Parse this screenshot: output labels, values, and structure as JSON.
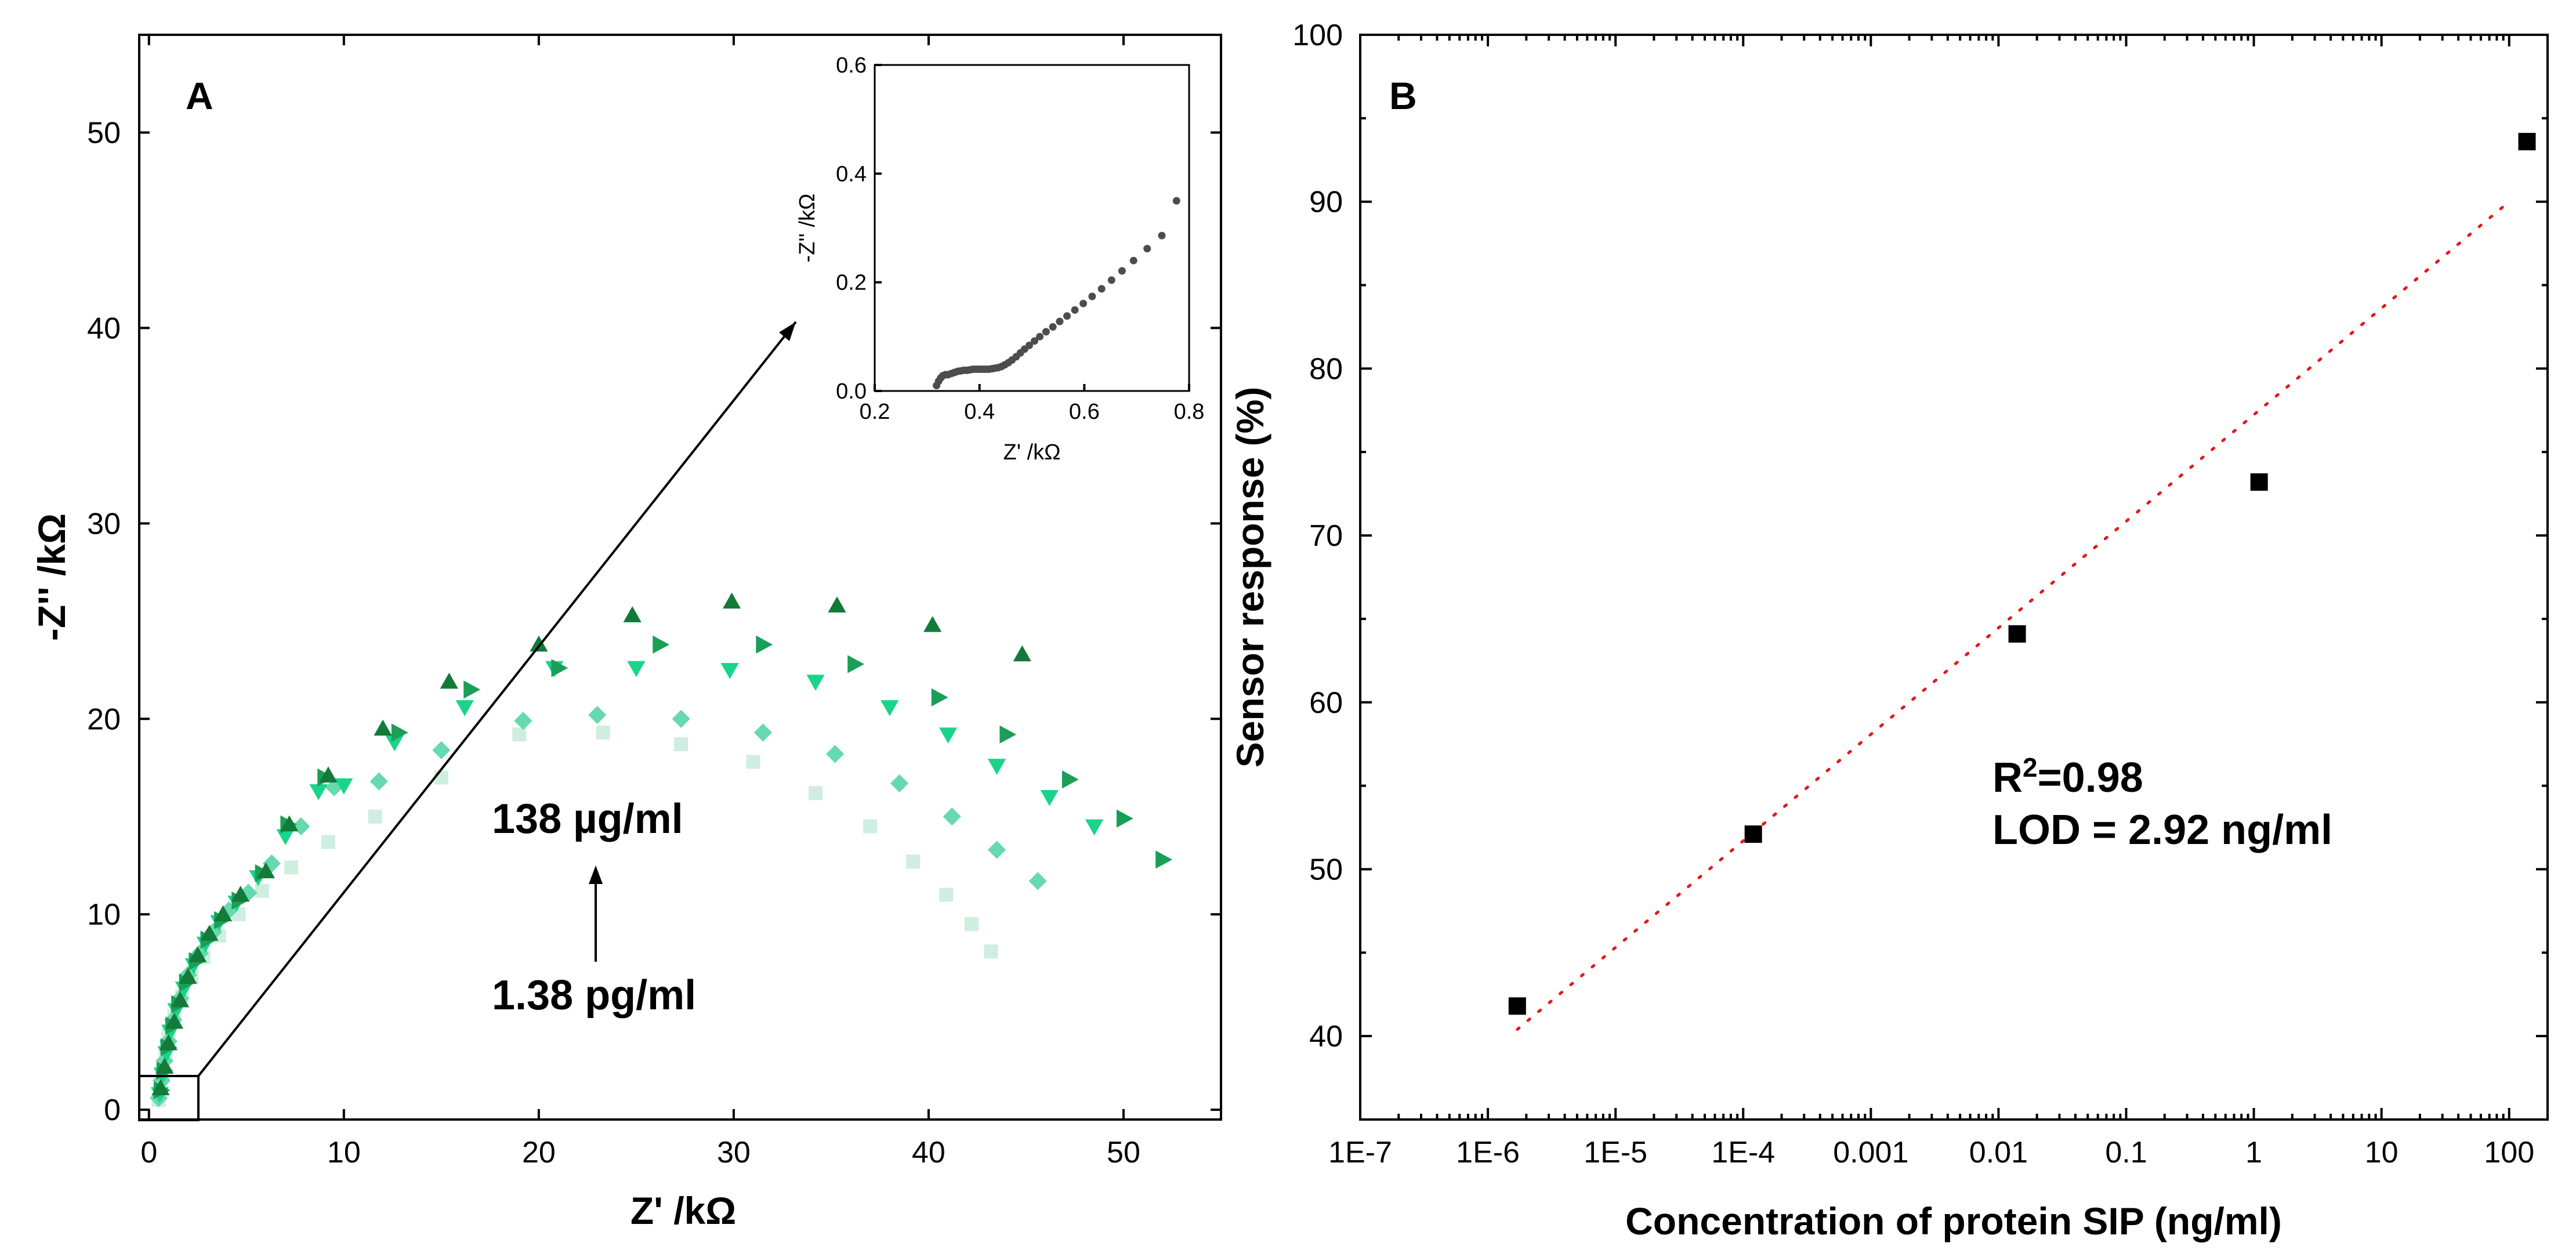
{
  "chart_data": [
    {
      "panel": "A",
      "type": "scatter",
      "xlabel": "Z' /kΩ",
      "ylabel": "-Z'' /kΩ",
      "xlim": [
        -0.5,
        55
      ],
      "ylim": [
        -0.5,
        55
      ],
      "xticks": [
        0,
        10,
        20,
        30,
        40,
        50
      ],
      "yticks": [
        0,
        10,
        20,
        30,
        40,
        50
      ],
      "colors": [
        "#cfeee0",
        "#8fe0bf",
        "#4cd9a3",
        "#19d48a",
        "#1ba35a",
        "#137a38"
      ],
      "series": [
        {
          "marker": "square",
          "x": [
            0.5,
            0.6,
            0.7,
            0.85,
            1.0,
            1.3,
            1.7,
            2.2,
            2.8,
            3.6,
            4.6,
            5.8,
            7.3,
            9.2,
            11.6,
            15.0,
            19.0,
            23.3,
            27.3,
            31.0,
            34.2,
            37.0,
            39.2,
            40.9,
            42.2,
            43.2
          ],
          "y": [
            0.5,
            1.2,
            2.0,
            2.9,
            3.8,
            4.8,
            5.8,
            6.8,
            7.8,
            8.9,
            10.0,
            11.2,
            12.4,
            13.7,
            15.0,
            17.0,
            19.2,
            19.3,
            18.7,
            17.8,
            16.2,
            14.5,
            12.7,
            11.0,
            9.5,
            8.1
          ]
        },
        {
          "marker": "diamond",
          "x": [
            0.5,
            0.65,
            0.8,
            1.0,
            1.25,
            1.6,
            2.0,
            2.6,
            3.3,
            4.1,
            5.1,
            6.3,
            7.8,
            9.5,
            11.8,
            15.0,
            19.2,
            23.0,
            27.3,
            31.5,
            35.2,
            38.5,
            41.2,
            43.5,
            45.6
          ],
          "y": [
            0.6,
            1.5,
            2.5,
            3.5,
            4.6,
            5.7,
            6.9,
            8.0,
            9.1,
            10.2,
            11.1,
            12.6,
            14.5,
            16.5,
            16.8,
            18.4,
            19.9,
            20.2,
            20.0,
            19.3,
            18.2,
            16.7,
            15.0,
            13.3,
            11.7
          ]
        },
        {
          "marker": "tri-down",
          "x": [
            0.55,
            0.7,
            0.9,
            1.1,
            1.4,
            1.8,
            2.3,
            2.9,
            3.6,
            4.5,
            5.6,
            7.0,
            8.7,
            10.0,
            12.6,
            16.2,
            20.8,
            25.0,
            29.8,
            34.2,
            38.0,
            41.0,
            43.5,
            46.2,
            48.5
          ],
          "y": [
            0.8,
            1.8,
            2.9,
            4.0,
            5.1,
            6.2,
            7.4,
            8.5,
            9.6,
            10.6,
            11.9,
            14.0,
            16.3,
            16.6,
            18.8,
            20.6,
            22.6,
            22.6,
            22.5,
            21.9,
            20.6,
            19.2,
            17.6,
            16.0,
            14.5
          ]
        },
        {
          "marker": "tri-right",
          "x": [
            0.6,
            0.75,
            0.95,
            1.2,
            1.5,
            1.9,
            2.4,
            3.0,
            3.7,
            4.6,
            5.8,
            7.1,
            9.0,
            12.8,
            16.5,
            21.0,
            26.2,
            31.5,
            36.2,
            40.5,
            44.0,
            47.2,
            50.0,
            52.0
          ],
          "y": [
            1.0,
            2.0,
            3.2,
            4.3,
            5.4,
            6.5,
            7.6,
            8.7,
            9.7,
            10.7,
            12.1,
            14.6,
            17.0,
            19.3,
            21.5,
            22.6,
            23.8,
            23.8,
            22.8,
            21.1,
            19.2,
            16.9,
            14.9,
            12.8
          ]
        },
        {
          "marker": "triangle",
          "x": [
            0.6,
            0.8,
            1.0,
            1.3,
            1.6,
            2.0,
            2.5,
            3.1,
            3.8,
            4.7,
            6.0,
            7.2,
            9.2,
            12.0,
            15.4,
            20.0,
            24.8,
            29.9,
            35.3,
            40.2,
            44.8
          ],
          "y": [
            1.1,
            2.2,
            3.4,
            4.5,
            5.6,
            6.8,
            7.9,
            9.0,
            10.0,
            11.0,
            12.2,
            14.6,
            17.1,
            19.5,
            21.9,
            23.8,
            25.3,
            26.0,
            25.8,
            24.8,
            23.3
          ]
        }
      ],
      "annotations": [
        "138 µg/ml",
        "1.38 pg/ml"
      ],
      "inset": {
        "type": "scatter",
        "xlabel": "Z' /kΩ",
        "ylabel": "-Z'' /kΩ",
        "xlim": [
          0.2,
          0.8
        ],
        "ylim": [
          0.0,
          0.6
        ],
        "xticks": [
          "0.2",
          "0.4",
          "0.6",
          "0.8"
        ],
        "yticks": [
          "0.0",
          "0.2",
          "0.4",
          "0.6"
        ],
        "color": "#4d4d4d",
        "x": [
          0.318,
          0.322,
          0.326,
          0.33,
          0.335,
          0.34,
          0.346,
          0.352,
          0.358,
          0.364,
          0.37,
          0.376,
          0.382,
          0.388,
          0.394,
          0.4,
          0.406,
          0.412,
          0.418,
          0.424,
          0.43,
          0.436,
          0.442,
          0.448,
          0.455,
          0.462,
          0.47,
          0.478,
          0.486,
          0.495,
          0.505,
          0.515,
          0.527,
          0.54,
          0.553,
          0.567,
          0.582,
          0.598,
          0.615,
          0.633,
          0.652,
          0.672,
          0.694,
          0.72,
          0.748,
          0.776
        ],
        "y": [
          0.01,
          0.018,
          0.024,
          0.028,
          0.03,
          0.03,
          0.032,
          0.034,
          0.036,
          0.037,
          0.038,
          0.038,
          0.039,
          0.04,
          0.04,
          0.04,
          0.04,
          0.04,
          0.04,
          0.041,
          0.042,
          0.043,
          0.045,
          0.048,
          0.052,
          0.057,
          0.063,
          0.07,
          0.077,
          0.084,
          0.092,
          0.1,
          0.109,
          0.118,
          0.128,
          0.138,
          0.149,
          0.161,
          0.174,
          0.188,
          0.204,
          0.221,
          0.24,
          0.262,
          0.286,
          0.35
        ]
      }
    },
    {
      "panel": "B",
      "type": "scatter",
      "xlabel": "Concentration of protein SIP (ng/ml)",
      "ylabel": "Sensor response (%)",
      "xscale": "log",
      "xlim": [
        1e-07,
        200
      ],
      "ylim": [
        35,
        100
      ],
      "xticks": [
        "1E-7",
        "1E-6",
        "1E-5",
        "1E-4",
        "0.001",
        "0.01",
        "0.1",
        "1",
        "10",
        "100"
      ],
      "yticks": [
        40,
        50,
        60,
        70,
        80,
        90,
        100
      ],
      "points": {
        "x": [
          1.7e-06,
          0.00012,
          0.014,
          1.1,
          138
        ],
        "y": [
          41.8,
          52.1,
          64.1,
          73.2,
          93.6
        ]
      },
      "fit": {
        "x": [
          1.7e-06,
          100
        ],
        "y": [
          40.4,
          90.0
        ],
        "color": "#e5191c",
        "style": "dotted"
      },
      "annotation_r2": {
        "r": "R",
        "sup": "2",
        "value": "=0.98"
      },
      "annotation_lod": "LOD = 2.92 ng/ml"
    }
  ]
}
